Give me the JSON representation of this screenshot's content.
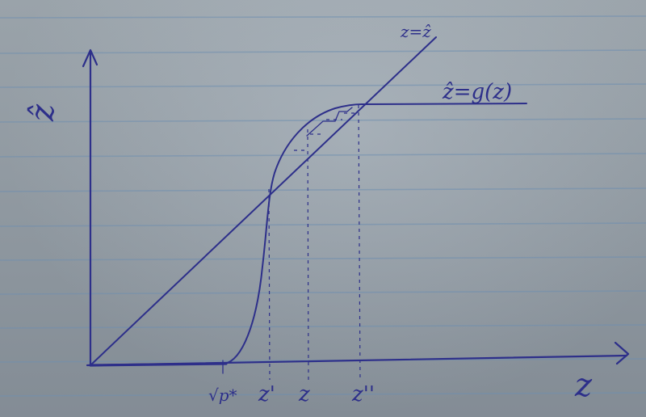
{
  "labels": {
    "y_axis": "ẑ",
    "x_axis": "z",
    "identity_line": "z=ẑ",
    "curve": "ẑ=g(z)",
    "x_ticks": [
      "√p*",
      "z'",
      "z",
      "z''"
    ]
  },
  "colors": {
    "ink": "#2d2f8a",
    "paper": "#8f98a0",
    "rule": "#6f8fb0"
  }
}
